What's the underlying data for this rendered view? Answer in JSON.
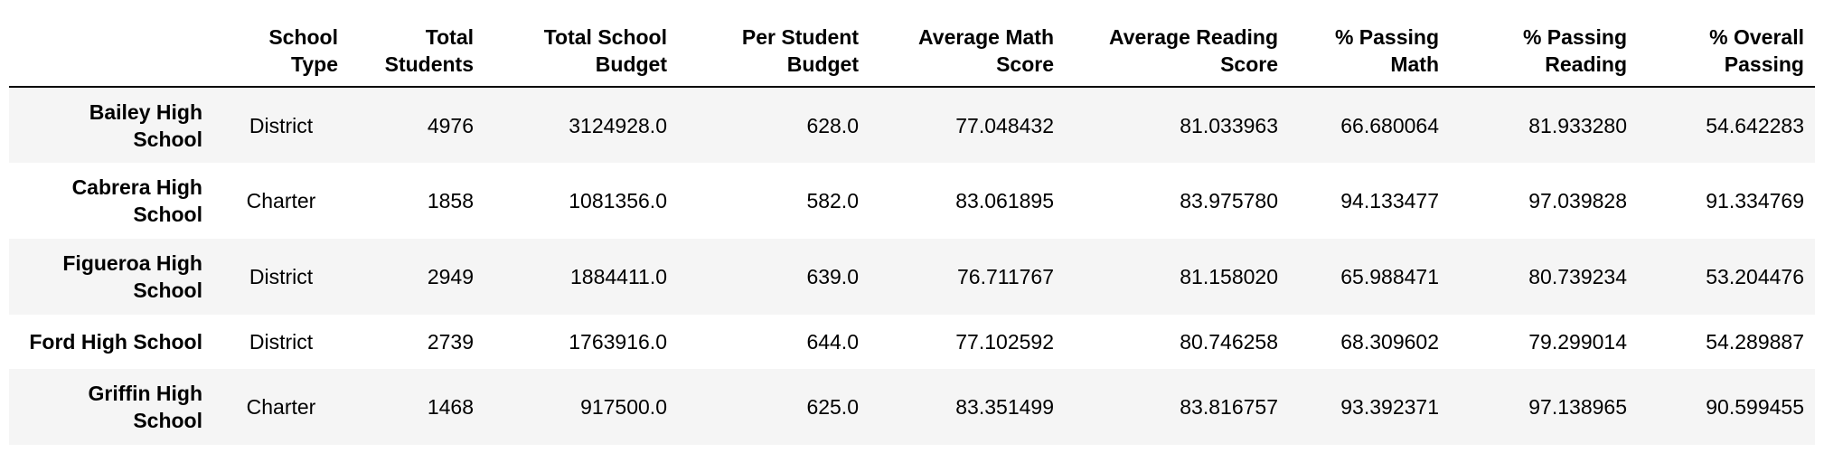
{
  "table": {
    "columns": [
      "",
      "School Type",
      "Total Students",
      "Total School Budget",
      "Per Student Budget",
      "Average Math Score",
      "Average Reading Score",
      "% Passing Math",
      "% Passing Reading",
      "% Overall Passing"
    ],
    "rows": [
      {
        "name": "Bailey High School",
        "school_type": "District",
        "total_students": "4976",
        "total_budget": "3124928.0",
        "per_student_budget": "628.0",
        "avg_math": "77.048432",
        "avg_reading": "81.033963",
        "pct_math": "66.680064",
        "pct_reading": "81.933280",
        "pct_overall": "54.642283"
      },
      {
        "name": "Cabrera High School",
        "school_type": "Charter",
        "total_students": "1858",
        "total_budget": "1081356.0",
        "per_student_budget": "582.0",
        "avg_math": "83.061895",
        "avg_reading": "83.975780",
        "pct_math": "94.133477",
        "pct_reading": "97.039828",
        "pct_overall": "91.334769"
      },
      {
        "name": "Figueroa High School",
        "school_type": "District",
        "total_students": "2949",
        "total_budget": "1884411.0",
        "per_student_budget": "639.0",
        "avg_math": "76.711767",
        "avg_reading": "81.158020",
        "pct_math": "65.988471",
        "pct_reading": "80.739234",
        "pct_overall": "53.204476"
      },
      {
        "name": "Ford High School",
        "school_type": "District",
        "total_students": "2739",
        "total_budget": "1763916.0",
        "per_student_budget": "644.0",
        "avg_math": "77.102592",
        "avg_reading": "80.746258",
        "pct_math": "68.309602",
        "pct_reading": "79.299014",
        "pct_overall": "54.289887"
      },
      {
        "name": "Griffin High School",
        "school_type": "Charter",
        "total_students": "1468",
        "total_budget": "917500.0",
        "per_student_budget": "625.0",
        "avg_math": "83.351499",
        "avg_reading": "83.816757",
        "pct_math": "93.392371",
        "pct_reading": "97.138965",
        "pct_overall": "90.599455"
      }
    ]
  }
}
